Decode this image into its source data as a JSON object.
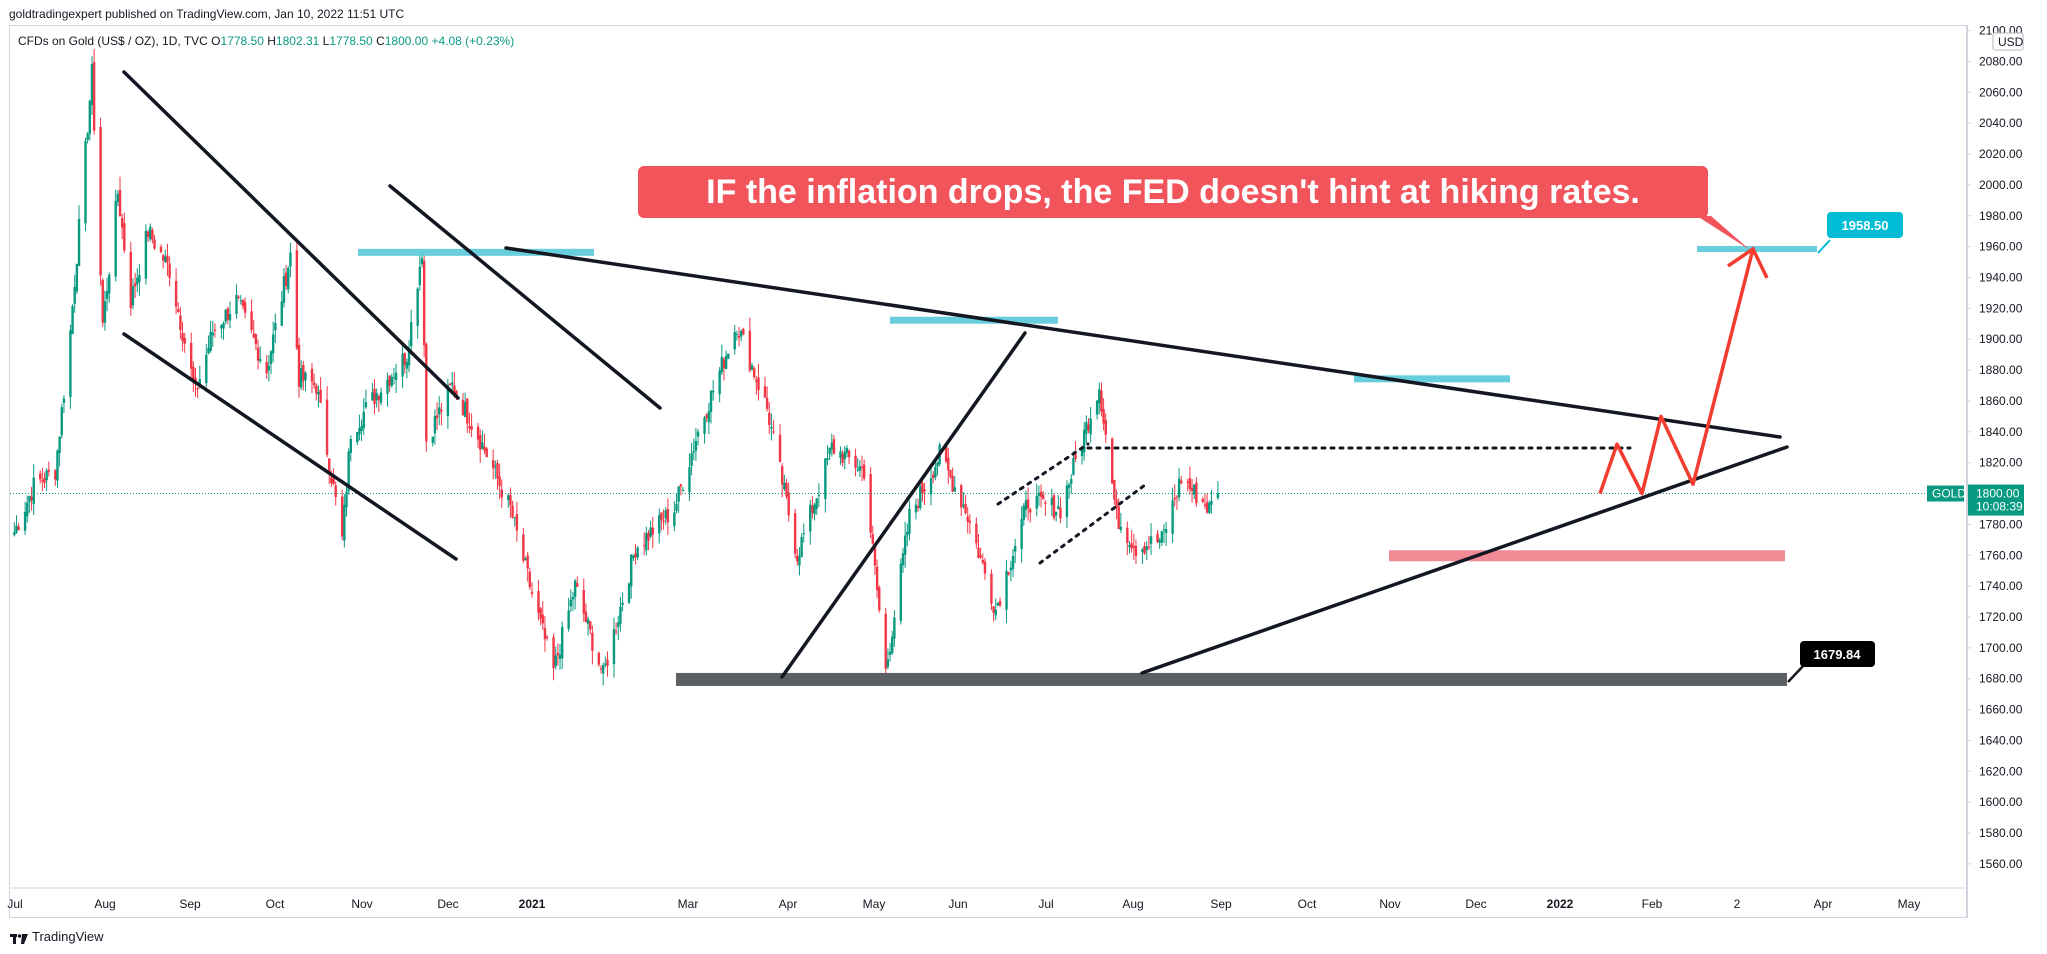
{
  "header": {
    "published_line": "goldtradingexpert published on TradingView.com, Jan 10, 2022 11:51 UTC"
  },
  "symbol": {
    "name": "CFDs on Gold (US$ / OZ), 1D, TVC",
    "open_label": "O",
    "open": "1778.50",
    "high_label": "H",
    "high": "1802.31",
    "low_label": "L",
    "low": "1778.50",
    "close_label": "C",
    "close": "1800.00",
    "change": "+4.08 (+0.23%)"
  },
  "annotation": {
    "text": "IF the inflation drops, the FED doesn't hint at hiking rates."
  },
  "price_scale": {
    "currency": "USD",
    "symbol_tag": "GOLD",
    "current_price": "1800.00",
    "countdown": "10:08:39"
  },
  "level_tags": {
    "target": "1958.50",
    "support": "1679.84"
  },
  "footer": {
    "brand": "TradingView"
  },
  "colors": {
    "up": "#089981",
    "down": "#f23645",
    "zone_resistance": "#4ec4d6",
    "zone_support_red": "#f08a94",
    "zone_support_gray": "#5d6062",
    "projection": "#f23c2f",
    "annotation_bg": "#f2545b",
    "target_tag": "#00bcd4"
  },
  "chart_data": {
    "type": "candlestick",
    "title": "CFDs on Gold (US$ / OZ), 1D, TVC",
    "y_ticks": [
      "2100.00",
      "2080.00",
      "2060.00",
      "2040.00",
      "2020.00",
      "2000.00",
      "1980.00",
      "1960.00",
      "1940.00",
      "1920.00",
      "1900.00",
      "1880.00",
      "1860.00",
      "1840.00",
      "1820.00",
      "1800.00",
      "1780.00",
      "1760.00",
      "1740.00",
      "1720.00",
      "1700.00",
      "1680.00",
      "1660.00",
      "1640.00",
      "1620.00",
      "1600.00",
      "1580.00",
      "1560.00"
    ],
    "x_ticks": [
      "Jul",
      "Aug",
      "Sep",
      "Oct",
      "Nov",
      "Dec",
      "2021",
      "Mar",
      "Apr",
      "May",
      "Jun",
      "Jul",
      "Aug",
      "Sep",
      "Oct",
      "Nov",
      "Dec",
      "2022",
      "Feb",
      "2",
      "Apr",
      "May"
    ],
    "ylim": [
      1545,
      2103
    ],
    "price_path": [
      [
        "2020-07-01",
        1775
      ],
      [
        "2020-07-10",
        1805
      ],
      [
        "2020-07-20",
        1815
      ],
      [
        "2020-07-27",
        1905
      ],
      [
        "2020-08-06",
        2072
      ],
      [
        "2020-08-11",
        1910
      ],
      [
        "2020-08-18",
        1995
      ],
      [
        "2020-08-24",
        1925
      ],
      [
        "2020-09-01",
        1970
      ],
      [
        "2020-09-11",
        1945
      ],
      [
        "2020-09-23",
        1865
      ],
      [
        "2020-10-01",
        1905
      ],
      [
        "2020-10-12",
        1925
      ],
      [
        "2020-10-26",
        1880
      ],
      [
        "2020-11-06",
        1955
      ],
      [
        "2020-11-10",
        1875
      ],
      [
        "2020-11-18",
        1870
      ],
      [
        "2020-11-30",
        1770
      ],
      [
        "2020-12-04",
        1840
      ],
      [
        "2020-12-16",
        1865
      ],
      [
        "2020-12-30",
        1890
      ],
      [
        "2021-01-06",
        1958
      ],
      [
        "2021-01-08",
        1835
      ],
      [
        "2021-01-20",
        1870
      ],
      [
        "2021-02-02",
        1835
      ],
      [
        "2021-02-16",
        1790
      ],
      [
        "2021-02-26",
        1735
      ],
      [
        "2021-03-08",
        1685
      ],
      [
        "2021-03-18",
        1740
      ],
      [
        "2021-03-31",
        1682
      ],
      [
        "2021-04-15",
        1765
      ],
      [
        "2021-05-03",
        1790
      ],
      [
        "2021-05-14",
        1840
      ],
      [
        "2021-06-01",
        1910
      ],
      [
        "2021-06-15",
        1855
      ],
      [
        "2021-06-29",
        1760
      ],
      [
        "2021-07-15",
        1830
      ],
      [
        "2021-07-30",
        1815
      ],
      [
        "2021-08-09",
        1685
      ],
      [
        "2021-08-20",
        1785
      ],
      [
        "2021-09-03",
        1825
      ],
      [
        "2021-09-15",
        1790
      ],
      [
        "2021-09-29",
        1725
      ],
      [
        "2021-10-14",
        1795
      ],
      [
        "2021-10-29",
        1790
      ],
      [
        "2021-11-16",
        1870
      ],
      [
        "2021-11-24",
        1785
      ],
      [
        "2021-12-03",
        1765
      ],
      [
        "2021-12-15",
        1770
      ],
      [
        "2021-12-24",
        1810
      ],
      [
        "2022-01-06",
        1790
      ],
      [
        "2022-01-10",
        1800
      ]
    ],
    "annotations": {
      "resistance_zones": [
        1956,
        1912,
        1874
      ],
      "support_zone_red": 1760,
      "support_zone_gray": 1679.84,
      "target": 1958.5,
      "current_price": 1800.0,
      "projection_path": [
        1800,
        1832,
        1800,
        1850,
        1806,
        1958.5
      ]
    }
  }
}
